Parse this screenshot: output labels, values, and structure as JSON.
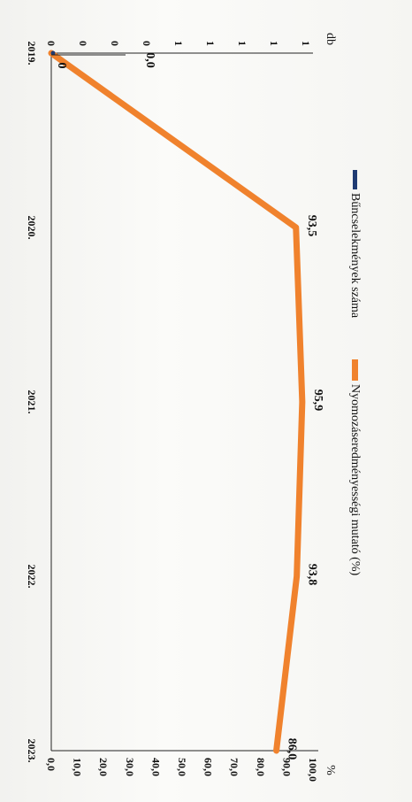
{
  "chart_data": {
    "type": "line",
    "categories": [
      "2019.",
      "2020.",
      "2021.",
      "2022.",
      "2023."
    ],
    "series": [
      {
        "name": "Bűncselekmények száma",
        "axis": "left",
        "values": [
          0,
          null,
          null,
          null,
          null
        ],
        "color": "#1f3b73",
        "data_labels": [
          "0",
          "",
          "",
          "",
          ""
        ]
      },
      {
        "name": "Nyomozáseredményességi mutató (%)",
        "axis": "right",
        "values": [
          0.0,
          93.5,
          95.9,
          93.8,
          86.0
        ],
        "color": "#f0822d",
        "data_labels": [
          "0,0",
          "93,5",
          "95,9",
          "93,8",
          "86,0"
        ]
      }
    ],
    "left_axis": {
      "unit": "db",
      "ticks": [
        "0",
        "0",
        "0",
        "0",
        "1",
        "1",
        "1",
        "1",
        "1"
      ]
    },
    "right_axis": {
      "unit": "%",
      "ylim": [
        0,
        100
      ],
      "ticks": [
        "0,0",
        "10,0",
        "20,0",
        "30,0",
        "40,0",
        "50,0",
        "60,0",
        "70,0",
        "80,0",
        "90,0",
        "100,0"
      ]
    },
    "legend_position": "top",
    "grid": false
  }
}
